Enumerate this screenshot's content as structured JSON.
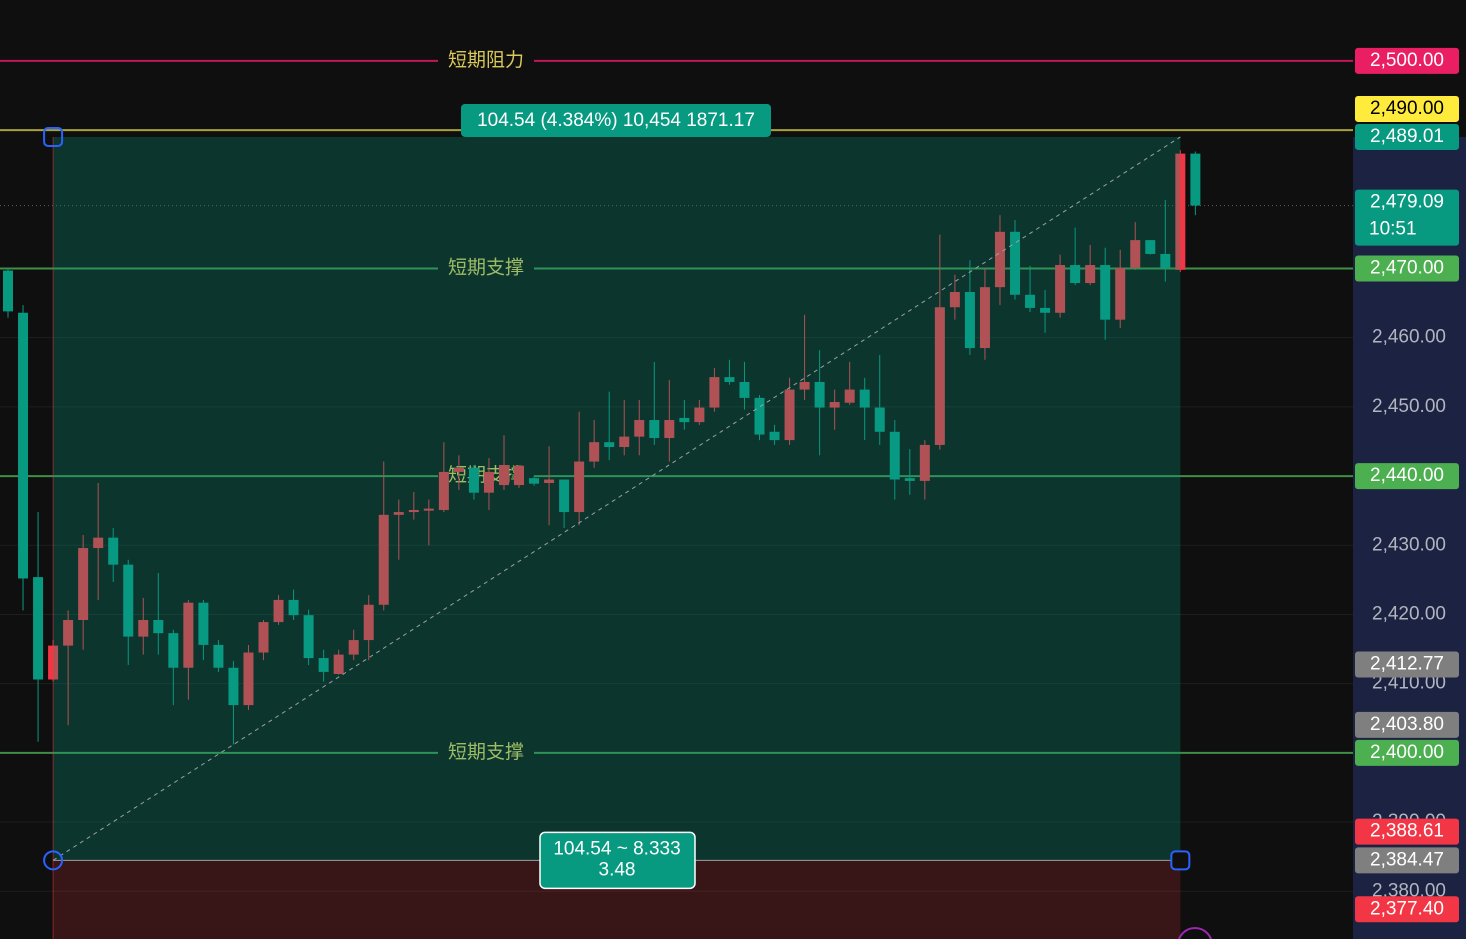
{
  "chart_data": {
    "type": "candlestick",
    "ylim": [
      2373.1,
      2508.8
    ],
    "yticks": [
      {
        "value": 2380,
        "label": "2,380.00"
      },
      {
        "value": 2390,
        "label": "2,390.00"
      },
      {
        "value": 2410,
        "label": "2,410.00"
      },
      {
        "value": 2420,
        "label": "2,420.00"
      },
      {
        "value": 2430,
        "label": "2,430.00"
      },
      {
        "value": 2450,
        "label": "2,450.00"
      },
      {
        "value": 2460,
        "label": "2,460.00"
      }
    ],
    "grid": true,
    "up_color": "#f23645",
    "down_color": "#089981",
    "open": [
      2469.7,
      2463.6,
      2425.4,
      2410.6,
      2415.5,
      2419.2,
      2429.6,
      2431.1,
      2427.2,
      2416.8,
      2419.2,
      2417.3,
      2412.3,
      2421.7,
      2415.6,
      2412.3,
      2406.9,
      2414.5,
      2418.9,
      2422.1,
      2419.9,
      2413.7,
      2411.4,
      2414.2,
      2416.3,
      2421.4,
      2434.4,
      2434.8,
      2435.0,
      2435.1,
      2440.6,
      2441.2,
      2437.6,
      2438.7,
      2438.7,
      2439.7,
      2439.0,
      2439.5,
      2434.8,
      2442.1,
      2444.9,
      2444.2,
      2445.7,
      2448.1,
      2445.5,
      2448.4,
      2447.8,
      2449.9,
      2454.3,
      2453.6,
      2451.3,
      2446.4,
      2445.2,
      2452.5,
      2453.6,
      2449.9,
      2450.6,
      2452.5,
      2449.9,
      2446.4,
      2439.7,
      2439.3,
      2444.5,
      2464.4,
      2466.6,
      2458.5,
      2467.3,
      2475.3,
      2466.2,
      2464.3,
      2463.6,
      2470.5,
      2467.9,
      2470.5,
      2462.6,
      2470.1,
      2474.1,
      2472.1,
      2469.8,
      2486.6
    ],
    "high": [
      2470.0,
      2464.7,
      2434.8,
      2416.3,
      2420.6,
      2431.5,
      2439.0,
      2432.5,
      2427.9,
      2422.4,
      2426.0,
      2417.8,
      2422.1,
      2422.1,
      2416.3,
      2413.3,
      2415.6,
      2419.2,
      2422.8,
      2423.6,
      2420.7,
      2414.9,
      2414.9,
      2417.8,
      2422.8,
      2442.1,
      2436.6,
      2437.7,
      2436.6,
      2444.9,
      2443.0,
      2441.6,
      2442.6,
      2445.9,
      2441.6,
      2440.0,
      2444.3,
      2439.5,
      2449.3,
      2448.1,
      2452.2,
      2451.0,
      2451.0,
      2456.5,
      2453.9,
      2451.0,
      2451.0,
      2455.6,
      2456.8,
      2456.5,
      2451.7,
      2447.4,
      2454.2,
      2463.3,
      2458.2,
      2452.5,
      2456.5,
      2454.2,
      2457.5,
      2448.1,
      2443.9,
      2445.2,
      2474.9,
      2469.1,
      2471.2,
      2470.1,
      2477.7,
      2477.0,
      2470.4,
      2466.9,
      2472.0,
      2475.9,
      2473.4,
      2473.0,
      2472.7,
      2476.7,
      2474.1,
      2479.9,
      2487.1,
      2486.9
    ],
    "low": [
      2462.9,
      2420.6,
      2401.6,
      2410.3,
      2404.0,
      2414.9,
      2422.1,
      2424.7,
      2412.7,
      2414.2,
      2414.2,
      2406.9,
      2407.7,
      2413.4,
      2411.7,
      2401.2,
      2406.2,
      2413.4,
      2418.5,
      2419.2,
      2412.7,
      2410.3,
      2411.3,
      2413.4,
      2413.4,
      2420.6,
      2427.9,
      2433.7,
      2430.0,
      2434.8,
      2438.0,
      2436.6,
      2435.1,
      2438.0,
      2438.3,
      2438.6,
      2432.9,
      2432.5,
      2432.9,
      2441.2,
      2442.3,
      2443.0,
      2443.0,
      2444.5,
      2442.1,
      2446.7,
      2447.4,
      2449.3,
      2453.2,
      2449.6,
      2445.2,
      2444.5,
      2444.5,
      2451.0,
      2443.0,
      2446.7,
      2450.3,
      2445.2,
      2444.5,
      2436.6,
      2437.3,
      2436.6,
      2443.8,
      2462.6,
      2457.5,
      2456.8,
      2464.7,
      2465.5,
      2463.7,
      2460.7,
      2462.9,
      2467.6,
      2467.6,
      2459.7,
      2461.4,
      2469.8,
      2472.0,
      2468.1,
      2469.5,
      2477.7
    ],
    "close": [
      2463.8,
      2425.2,
      2410.6,
      2415.5,
      2419.2,
      2429.6,
      2431.1,
      2427.2,
      2416.8,
      2419.2,
      2417.3,
      2412.3,
      2421.7,
      2415.6,
      2412.3,
      2406.9,
      2414.5,
      2418.9,
      2422.1,
      2419.9,
      2413.7,
      2411.7,
      2414.2,
      2416.3,
      2421.4,
      2434.4,
      2434.8,
      2435.1,
      2435.3,
      2440.6,
      2441.2,
      2437.6,
      2440.6,
      2441.6,
      2441.5,
      2438.9,
      2439.5,
      2434.8,
      2442.1,
      2444.9,
      2444.2,
      2445.7,
      2448.1,
      2445.5,
      2448.1,
      2447.8,
      2449.9,
      2454.3,
      2453.6,
      2451.3,
      2446.0,
      2445.2,
      2452.5,
      2453.6,
      2449.9,
      2450.7,
      2452.5,
      2449.9,
      2446.4,
      2439.5,
      2439.3,
      2444.5,
      2464.4,
      2466.6,
      2458.5,
      2467.3,
      2475.3,
      2466.2,
      2464.3,
      2463.6,
      2470.5,
      2467.9,
      2470.5,
      2462.6,
      2470.1,
      2474.1,
      2472.1,
      2470.1,
      2486.6,
      2479.09
    ],
    "levels": [
      {
        "value": 2500,
        "label": "短期阻力",
        "color": "#c2185b"
      },
      {
        "value": 2490,
        "color": "#a8a23a"
      },
      {
        "value": 2470,
        "label": "短期支撑",
        "color": "#3f8f46"
      },
      {
        "value": 2440,
        "label": "短期支撑",
        "color": "#3f8f46"
      },
      {
        "value": 2400,
        "label": "短期支撑",
        "color": "#3f8f46"
      }
    ],
    "measure": {
      "top": 2489.01,
      "bottom": 2384.47,
      "label": "104.54 (4.384%) 10,454 1871.17",
      "stats": [
        "104.54 ~ 8.333",
        "3.48"
      ]
    },
    "last_price": {
      "value": 2479.09,
      "label": "2,479.09",
      "countdown": "10:51",
      "color": "#089981"
    },
    "badges": [
      {
        "value": 2500,
        "label": "2,500.00",
        "color": "#e91e63"
      },
      {
        "value": 2490,
        "label": "2,490.00",
        "color": "#ffeb3b",
        "text_color": "#000000"
      },
      {
        "value": 2489.01,
        "label": "2,489.01",
        "color": "#089981"
      },
      {
        "value": 2470,
        "label": "2,470.00",
        "color": "#4caf50"
      },
      {
        "value": 2440,
        "label": "2,440.00",
        "color": "#4caf50"
      },
      {
        "value": 2412.77,
        "label": "2,412.77",
        "color": "#7f7f7f"
      },
      {
        "value": 2403.8,
        "label": "2,403.80",
        "color": "#7f7f7f"
      },
      {
        "value": 2400,
        "label": "2,400.00",
        "color": "#4caf50"
      },
      {
        "value": 2388.61,
        "label": "2,388.61",
        "color": "#f23645"
      },
      {
        "value": 2384.47,
        "label": "2,384.47",
        "color": "#7f7f7f"
      },
      {
        "value": 2377.4,
        "label": "2,377.40",
        "color": "#f23645"
      }
    ]
  }
}
